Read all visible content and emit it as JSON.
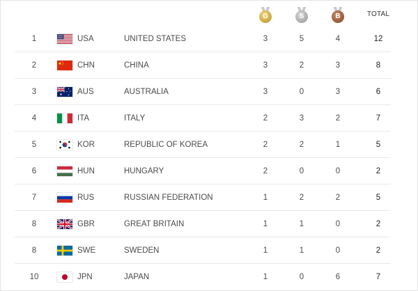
{
  "header": {
    "gold_label": "G",
    "silver_label": "S",
    "bronze_label": "B",
    "total_label": "TOTAL"
  },
  "rows": [
    {
      "rank": "1",
      "code": "USA",
      "name": "UNITED STATES",
      "gold": "3",
      "silver": "5",
      "bronze": "4",
      "total": "12",
      "flag": "usa-flag-icon"
    },
    {
      "rank": "2",
      "code": "CHN",
      "name": "CHINA",
      "gold": "3",
      "silver": "2",
      "bronze": "3",
      "total": "8",
      "flag": "china-flag-icon"
    },
    {
      "rank": "3",
      "code": "AUS",
      "name": "AUSTRALIA",
      "gold": "3",
      "silver": "0",
      "bronze": "3",
      "total": "6",
      "flag": "australia-flag-icon"
    },
    {
      "rank": "4",
      "code": "ITA",
      "name": "ITALY",
      "gold": "2",
      "silver": "3",
      "bronze": "2",
      "total": "7",
      "flag": "italy-flag-icon"
    },
    {
      "rank": "5",
      "code": "KOR",
      "name": "REPUBLIC OF KOREA",
      "gold": "2",
      "silver": "2",
      "bronze": "1",
      "total": "5",
      "flag": "korea-flag-icon"
    },
    {
      "rank": "6",
      "code": "HUN",
      "name": "HUNGARY",
      "gold": "2",
      "silver": "0",
      "bronze": "0",
      "total": "2",
      "flag": "hungary-flag-icon"
    },
    {
      "rank": "7",
      "code": "RUS",
      "name": "RUSSIAN FEDERATION",
      "gold": "1",
      "silver": "2",
      "bronze": "2",
      "total": "5",
      "flag": "russia-flag-icon"
    },
    {
      "rank": "8",
      "code": "GBR",
      "name": "GREAT BRITAIN",
      "gold": "1",
      "silver": "1",
      "bronze": "0",
      "total": "2",
      "flag": "great-britain-flag-icon"
    },
    {
      "rank": "8",
      "code": "SWE",
      "name": "SWEDEN",
      "gold": "1",
      "silver": "1",
      "bronze": "0",
      "total": "2",
      "flag": "sweden-flag-icon"
    },
    {
      "rank": "10",
      "code": "JPN",
      "name": "JAPAN",
      "gold": "1",
      "silver": "0",
      "bronze": "6",
      "total": "7",
      "flag": "japan-flag-icon"
    }
  ],
  "colors": {
    "gold": "#c9a640",
    "silver": "#a7a7a7",
    "bronze": "#96583a",
    "divider": "#e7e7e7"
  }
}
